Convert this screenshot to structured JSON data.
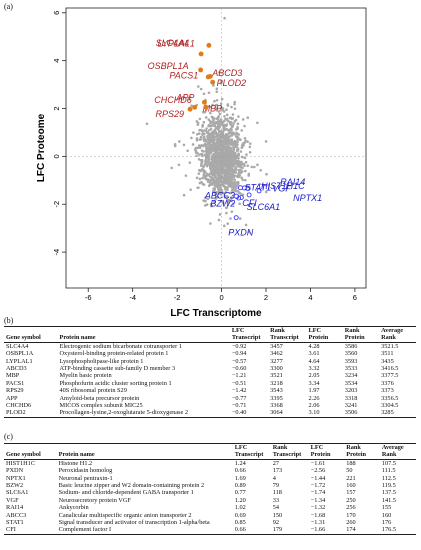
{
  "panel_a": {
    "label": "(a)",
    "chart_data": {
      "type": "scatter",
      "xlabel": "LFC Transcriptome",
      "ylabel": "LFC Proteome",
      "xlim": [
        -7,
        6.5
      ],
      "ylim": [
        -5.5,
        6.2
      ],
      "xticks": [
        -6,
        -4,
        -2,
        0,
        2,
        4,
        6
      ],
      "yticks": [
        -4,
        -2,
        0,
        2,
        4,
        6
      ],
      "background_points": "dense grey cloud of proteins centred near (0,0)",
      "series": [
        {
          "name": "up",
          "color": "#e07b1a",
          "label_color": "#b22222",
          "points": [
            {
              "label": "SLC4A4",
              "x": -0.92,
              "y": 4.28
            },
            {
              "label": "OSBPL1A",
              "x": -0.94,
              "y": 3.61
            },
            {
              "label": "LYPLAL1",
              "x": -0.57,
              "y": 4.64
            },
            {
              "label": "ABCD3",
              "x": -0.6,
              "y": 3.32
            },
            {
              "label": "MBP",
              "x": -1.21,
              "y": 2.05
            },
            {
              "label": "PACS1",
              "x": -0.51,
              "y": 3.34
            },
            {
              "label": "RPS29",
              "x": -1.42,
              "y": 1.97
            },
            {
              "label": "APP",
              "x": -0.77,
              "y": 2.26
            },
            {
              "label": "CHCHD6",
              "x": -0.71,
              "y": 2.06
            },
            {
              "label": "PLOD2",
              "x": -0.4,
              "y": 3.1
            }
          ]
        },
        {
          "name": "down",
          "color": "#3a3aff",
          "label_color": "#1a1acc",
          "points": [
            {
              "label": "HIST1H1C",
              "x": 1.24,
              "y": -1.61
            },
            {
              "label": "PXDN",
              "x": 0.66,
              "y": -2.56
            },
            {
              "label": "NPTX1",
              "x": 1.69,
              "y": -1.44
            },
            {
              "label": "BZW2",
              "x": 0.89,
              "y": -1.72
            },
            {
              "label": "SLC6A1",
              "x": 0.77,
              "y": -1.74
            },
            {
              "label": "VGF",
              "x": 1.2,
              "y": -1.34
            },
            {
              "label": "RAI14",
              "x": 1.02,
              "y": -1.32
            },
            {
              "label": "ABCC3",
              "x": 0.69,
              "y": -1.68
            },
            {
              "label": "STAT1",
              "x": 0.85,
              "y": -1.31
            },
            {
              "label": "CFI",
              "x": 0.66,
              "y": -1.66
            }
          ]
        }
      ]
    }
  },
  "panel_b": {
    "label": "(b)",
    "headers": [
      "Gene symbol",
      "Protein name",
      "LFC Transcript",
      "Rank Transcript",
      "LFC Protein",
      "Rank Protein",
      "Average Rank"
    ],
    "rows": [
      [
        "SLC4A4",
        "Electrogenic sodium bicarbonate cotransporter 1",
        "−0.92",
        "3457",
        "4.28",
        "3586",
        "3521.5"
      ],
      [
        "OSBPL1A",
        "Oxysterol-binding protein-related protein 1",
        "−0.94",
        "3462",
        "3.61",
        "3560",
        "3511"
      ],
      [
        "LYPLAL1",
        "Lysophospholipase-like protein 1",
        "−0.57",
        "3277",
        "4.64",
        "3593",
        "3435"
      ],
      [
        "ABCD3",
        "ATP-binding cassette sub-family D member 3",
        "−0.60",
        "3300",
        "3.32",
        "3533",
        "3416.5"
      ],
      [
        "MBP",
        "Myelin basic protein",
        "−1.21",
        "3521",
        "2.05",
        "3234",
        "3377.5"
      ],
      [
        "PACS1",
        "Phosphofurin acidic cluster sorting protein 1",
        "−0.51",
        "3218",
        "3.34",
        "3534",
        "3376"
      ],
      [
        "RPS29",
        "40S ribosomal protein S29",
        "−1.42",
        "3543",
        "1.97",
        "3203",
        "3373"
      ],
      [
        "APP",
        "Amyloid-beta precursor protein",
        "−0.77",
        "3395",
        "2.26",
        "3318",
        "3356.5"
      ],
      [
        "CHCHD6",
        "MICOS complex subunit MIC25",
        "−0.71",
        "3368",
        "2.06",
        "3241",
        "3304.5"
      ],
      [
        "PLOD2",
        "Procollagen-lysine,2-oxoglutarate 5-dioxygenase 2",
        "−0.40",
        "3064",
        "3.10",
        "3506",
        "3285"
      ]
    ]
  },
  "panel_c": {
    "label": "(c)",
    "headers": [
      "Gene symbol",
      "Protein name",
      "LFC Transcript",
      "Rank Transcript",
      "LFC Protein",
      "Rank Protein",
      "Average Rank"
    ],
    "rows": [
      [
        "HIST1H1C",
        "Histone H1.2",
        "1.24",
        "27",
        "−1.61",
        "188",
        "107.5"
      ],
      [
        "PXDN",
        "Peroxidasin homolog",
        "0.66",
        "173",
        "−2.56",
        "50",
        "111.5"
      ],
      [
        "NPTX1",
        "Neuronal pentraxin-1",
        "1.69",
        "4",
        "−1.44",
        "221",
        "112.5"
      ],
      [
        "BZW2",
        "Basic leucine zipper and W2 domain-containing protein 2",
        "0.89",
        "79",
        "−1.72",
        "160",
        "119.5"
      ],
      [
        "SLC6A1",
        "Sodium- and chloride-dependent GABA transporter 1",
        "0.77",
        "118",
        "−1.74",
        "157",
        "137.5"
      ],
      [
        "VGF",
        "Neurosecretory protein VGF",
        "1.20",
        "33",
        "−1.34",
        "250",
        "141.5"
      ],
      [
        "RAI14",
        "Ankycorbin",
        "1.02",
        "54",
        "−1.32",
        "256",
        "155"
      ],
      [
        "ABCC3",
        "Canalicular multispecific organic anion transporter 2",
        "0.69",
        "150",
        "−1.68",
        "170",
        "160"
      ],
      [
        "STAT1",
        "Signal transducer and activator of transcription 1-alpha/beta",
        "0.85",
        "92",
        "−1.31",
        "260",
        "176"
      ],
      [
        "CFI",
        "Complement factor I",
        "0.66",
        "179",
        "−1.66",
        "174",
        "176.5"
      ]
    ]
  }
}
